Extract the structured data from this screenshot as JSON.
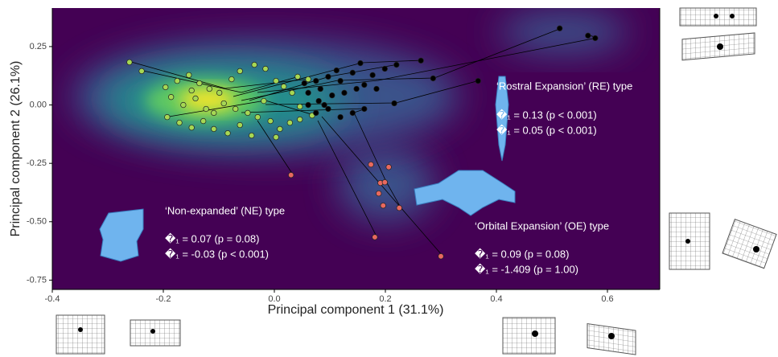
{
  "chart_data": {
    "type": "scatter",
    "x_label": "Principal component 1 (31.1%)",
    "y_label": "Principal component 2 (26.1%)",
    "xlim": [
      -0.4,
      0.7
    ],
    "ylim": [
      -0.79,
      0.415
    ],
    "xticks": [
      -0.4,
      -0.2,
      {
        "value": 0,
        "label": "0.0"
      },
      0.2,
      0.4,
      0.6
    ],
    "yticks": [
      0.25,
      {
        "value": 0,
        "label": "0.00"
      },
      -0.25,
      {
        "value": -0.5,
        "label": "-0.50"
      },
      -0.75
    ],
    "series": [
      {
        "color": "#a6d854",
        "x": [
          -0.261,
          -0.239,
          -0.196,
          -0.175,
          -0.154,
          -0.135,
          -0.117,
          -0.099,
          -0.077,
          -0.062,
          -0.036,
          -0.016,
          0.003,
          0.017,
          0.032,
          0.042,
          0.061,
          -0.164,
          -0.142,
          -0.123,
          -0.109,
          -0.091,
          -0.07,
          -0.048,
          -0.03,
          -0.007,
          0.01,
          0.028,
          0.046,
          0.068,
          -0.193,
          -0.171,
          -0.149,
          -0.128,
          -0.109,
          -0.084,
          -0.062,
          -0.041,
          0.003,
          -0.149,
          -0.186,
          -0.019,
          0.046
        ],
        "values": [
          0.183,
          0.145,
          0.076,
          0.103,
          0.128,
          0.093,
          0.069,
          0.052,
          0.11,
          0.145,
          0.172,
          0.155,
          0.103,
          0.079,
          0.052,
          0.121,
          0.11,
          0,
          0.028,
          -0.017,
          -0.034,
          0.007,
          -0.017,
          -0.034,
          -0.052,
          -0.069,
          -0.103,
          -0.076,
          -0.062,
          -0.045,
          -0.052,
          -0.076,
          -0.097,
          -0.069,
          -0.103,
          -0.121,
          -0.086,
          -0.131,
          -0.138,
          0.062,
          0.034,
          0.017,
          -0.007
        ]
      },
      {
        "color": "#000000",
        "x": [
          0.514,
          0.565,
          0.578,
          0.367,
          0.286,
          0.264,
          0.22,
          0.199,
          0.177,
          0.155,
          0.141,
          0.119,
          0.097,
          0.075,
          0.054,
          0.061,
          0.08,
          0.09,
          0.104,
          0.126,
          0.148,
          0.162,
          0.184,
          0.216,
          0.162,
          0.141,
          0.119,
          0.097,
          0.075,
          0.061,
          0.112,
          0.083
        ],
        "values": [
          0.328,
          0.297,
          0.286,
          0.103,
          0.114,
          0.19,
          0.172,
          0.155,
          0.128,
          0.179,
          0.138,
          0.103,
          0.121,
          0.103,
          0.093,
          0.052,
          0.017,
          0,
          0.041,
          0.052,
          0.069,
          0.086,
          0.069,
          0.007,
          -0.017,
          -0.034,
          -0.052,
          -0.017,
          -0.034,
          0,
          0.148,
          0.069
        ]
      },
      {
        "color": "#e8695f",
        "x": [
          0.03,
          0.174,
          0.206,
          0.191,
          0.199,
          0.188,
          0.196,
          0.225,
          0.181,
          0.3
        ],
        "values": [
          -0.3,
          -0.255,
          -0.266,
          -0.334,
          -0.331,
          -0.379,
          -0.431,
          -0.441,
          -0.566,
          -0.648
        ]
      }
    ],
    "annotations": [
      "‘Rostral Expansion’ (RE) type",
      "�₁ = 0.13 (p < 0.001)",
      "�₁ =  0.05 (p < 0.001)",
      "‘Non-expanded’ (NE) type",
      "�₁ =  0.07 (p = 0.08)",
      "�₁ =  -0.03 (p < 0.001)",
      "‘Orbital Expansion’ (OE) type",
      "�₁ = 0.09 (p = 0.08)",
      "�₁ = -1.409 (p = 1.00)"
    ]
  }
}
